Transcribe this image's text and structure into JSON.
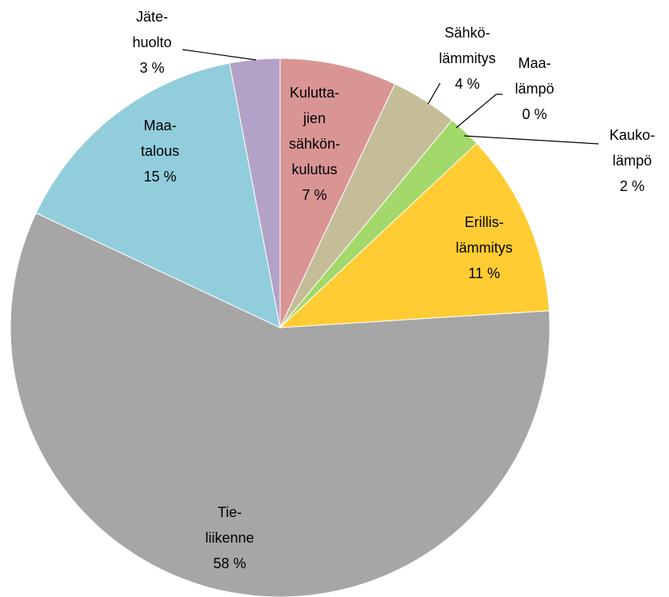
{
  "chart_data": {
    "type": "pie",
    "categories": [
      "Kulutta-\njien\nsähkön-\nkulutus",
      "Sähkö-\nlämmitys",
      "Maa-\nlämpö",
      "Kauko-\nlämpö",
      "Erillis-\nlämmitys",
      "Tie-\nliikenne",
      "Maa-\ntalous",
      "Jäte-\nhuolto"
    ],
    "values": [
      7,
      4,
      0,
      2,
      11,
      58,
      15,
      3
    ],
    "value_labels": [
      "7 %",
      "4 %",
      "0 %",
      "2 %",
      "11 %",
      "58 %",
      "15 %",
      "3 %"
    ],
    "colors": [
      "#d99594",
      "#c4bd97",
      "#fac090",
      "#a3d86a",
      "#ffcc33",
      "#a6a6a6",
      "#92cddc",
      "#b3a2c7"
    ]
  }
}
